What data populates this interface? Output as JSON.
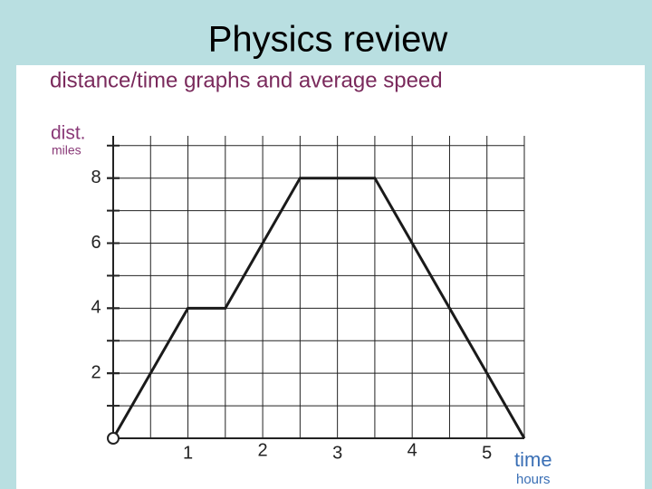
{
  "slide_title": "Physics review",
  "chart_data": {
    "type": "line",
    "title": "distance/time graphs and average speed",
    "y_label": "dist.",
    "y_unit": "miles",
    "x_label": "time",
    "x_unit": "hours",
    "x": [
      0,
      1,
      1.5,
      2.5,
      3.5,
      5.5
    ],
    "values": [
      0,
      4,
      4,
      8,
      8,
      0
    ],
    "color": "#1a1a1a",
    "xlim": [
      0,
      5.5
    ],
    "ylim": [
      0,
      9.3
    ],
    "xticks": [
      1,
      2,
      3,
      4,
      5
    ],
    "yticks": [
      2,
      4,
      6,
      8
    ],
    "grid": true,
    "xminor": 0.5,
    "yminor": 1
  }
}
